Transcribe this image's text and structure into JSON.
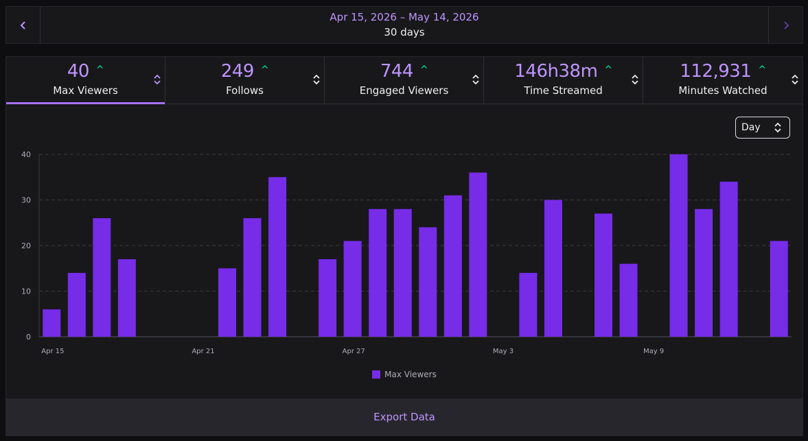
{
  "date_nav": {
    "range": "Apr 15, 2026 – May 14, 2026",
    "days": "30 days",
    "prev_icon": "chevron-left-icon",
    "next_icon": "chevron-right-icon"
  },
  "stats": [
    {
      "value": "40",
      "label": "Max Viewers",
      "active": true
    },
    {
      "value": "249",
      "label": "Follows",
      "active": false
    },
    {
      "value": "744",
      "label": "Engaged Viewers",
      "active": false
    },
    {
      "value": "146h38m",
      "label": "Time Streamed",
      "active": false
    },
    {
      "value": "112,931",
      "label": "Minutes Watched",
      "active": false
    }
  ],
  "trend_icon": "arrow-up-icon",
  "sort_icon": "sort-updown-icon",
  "colors": {
    "accent": "#a970ff",
    "bar": "#772ce8",
    "trend_up": "#00f593"
  },
  "granularity": {
    "selected": "Day"
  },
  "chart_data": {
    "type": "bar",
    "categories": [
      "Apr 15",
      "Apr 16",
      "Apr 17",
      "Apr 18",
      "Apr 19",
      "Apr 20",
      "Apr 21",
      "Apr 22",
      "Apr 23",
      "Apr 24",
      "Apr 25",
      "Apr 26",
      "Apr 27",
      "Apr 28",
      "Apr 29",
      "Apr 30",
      "May 1",
      "May 2",
      "May 3",
      "May 4",
      "May 5",
      "May 6",
      "May 7",
      "May 8",
      "May 9",
      "May 10",
      "May 11",
      "May 12",
      "May 13",
      "May 14"
    ],
    "series": [
      {
        "name": "Max Viewers",
        "values": [
          6,
          14,
          26,
          17,
          0,
          0,
          0,
          15,
          26,
          35,
          0,
          17,
          21,
          28,
          28,
          24,
          31,
          36,
          0,
          14,
          30,
          0,
          27,
          16,
          0,
          40,
          28,
          34,
          0,
          21
        ]
      }
    ],
    "x_tick_labels": [
      "Apr 15",
      "Apr 21",
      "Apr 27",
      "May 3",
      "May 9"
    ],
    "y_ticks": [
      0,
      10,
      20,
      30,
      40
    ],
    "ylim": [
      0,
      40
    ],
    "grid": true,
    "legend_position": "bottom-center"
  },
  "export": {
    "label": "Export Data"
  }
}
